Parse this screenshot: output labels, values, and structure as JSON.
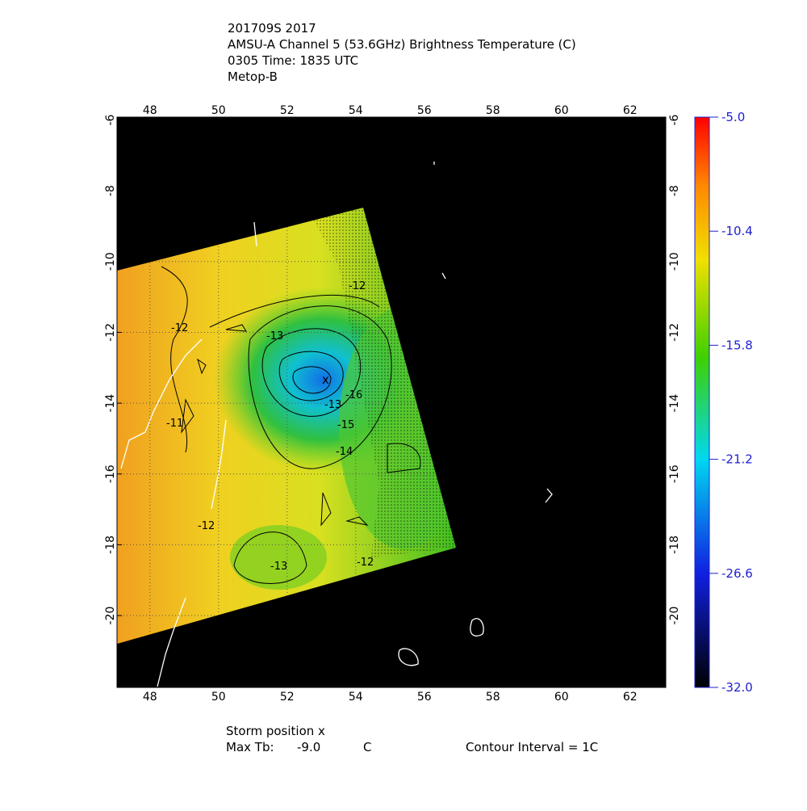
{
  "header": {
    "lines": [
      "201709S 2017",
      "AMSU-A Channel 5 (53.6GHz) Brightness Temperature (C)",
      "0305 Time: 1835 UTC",
      "Metop-B"
    ]
  },
  "map": {
    "lon_range": [
      47.04,
      63.04
    ],
    "lat_range": [
      -22.03,
      -5.92
    ],
    "lon_ticks": [
      48,
      50,
      52,
      54,
      56,
      58,
      60,
      62
    ],
    "lat_ticks": [
      -6,
      -8,
      -10,
      -12,
      -14,
      -16,
      -18,
      -20
    ],
    "contour_labels": [
      "-12",
      "-13",
      "-12",
      "-11",
      "-12",
      "-13",
      "-12",
      "-14",
      "-15",
      "-16",
      "-13"
    ]
  },
  "colorbar": {
    "range": [
      -32,
      -5
    ],
    "ticks": [
      {
        "value": -5,
        "label": "-5.0"
      },
      {
        "value": -10.4,
        "label": "-10.4"
      },
      {
        "value": -15.8,
        "label": "-15.8"
      },
      {
        "value": -21.2,
        "label": "-21.2"
      },
      {
        "value": -26.6,
        "label": "-26.6"
      },
      {
        "value": -32,
        "label": "-32.0"
      }
    ]
  },
  "footer": {
    "storm_position": "Storm position x",
    "max_tb_label": "Max Tb:",
    "max_tb_value": "-9.0",
    "max_tb_unit": "C",
    "contour_interval": "Contour Interval = 1C"
  }
}
